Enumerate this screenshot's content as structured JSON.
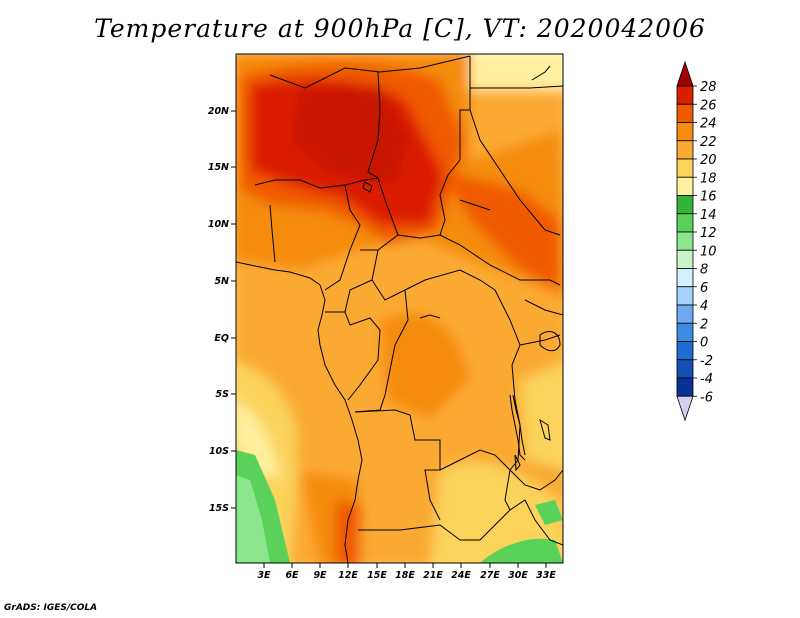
{
  "title": "Temperature at 900hPa [C], VT: 2020042006",
  "credit": "GrADS: IGES/COLA",
  "map": {
    "y_ticks": [
      "20N",
      "15N",
      "10N",
      "5N",
      "EQ",
      "5S",
      "10S",
      "15S"
    ],
    "x_ticks": [
      "3E",
      "6E",
      "9E",
      "12E",
      "15E",
      "18E",
      "21E",
      "24E",
      "27E",
      "30E",
      "33E"
    ]
  },
  "colorbar": {
    "labels": [
      "28",
      "26",
      "24",
      "22",
      "20",
      "18",
      "16",
      "14",
      "12",
      "10",
      "8",
      "6",
      "4",
      "2",
      "0",
      "-2",
      "-4",
      "-6"
    ],
    "colors": [
      "#a00000",
      "#dc1e00",
      "#f05a00",
      "#f58c0f",
      "#faaa32",
      "#fbd25a",
      "#fff0a0",
      "#34b437",
      "#5ad25a",
      "#8ce68c",
      "#c8f5c8",
      "#d2f0ff",
      "#a5d2fa",
      "#6eaaf0",
      "#3c8ce1",
      "#1e6ed2",
      "#1450b4",
      "#0a3296",
      "#000078",
      "#d2d2f0"
    ]
  }
}
